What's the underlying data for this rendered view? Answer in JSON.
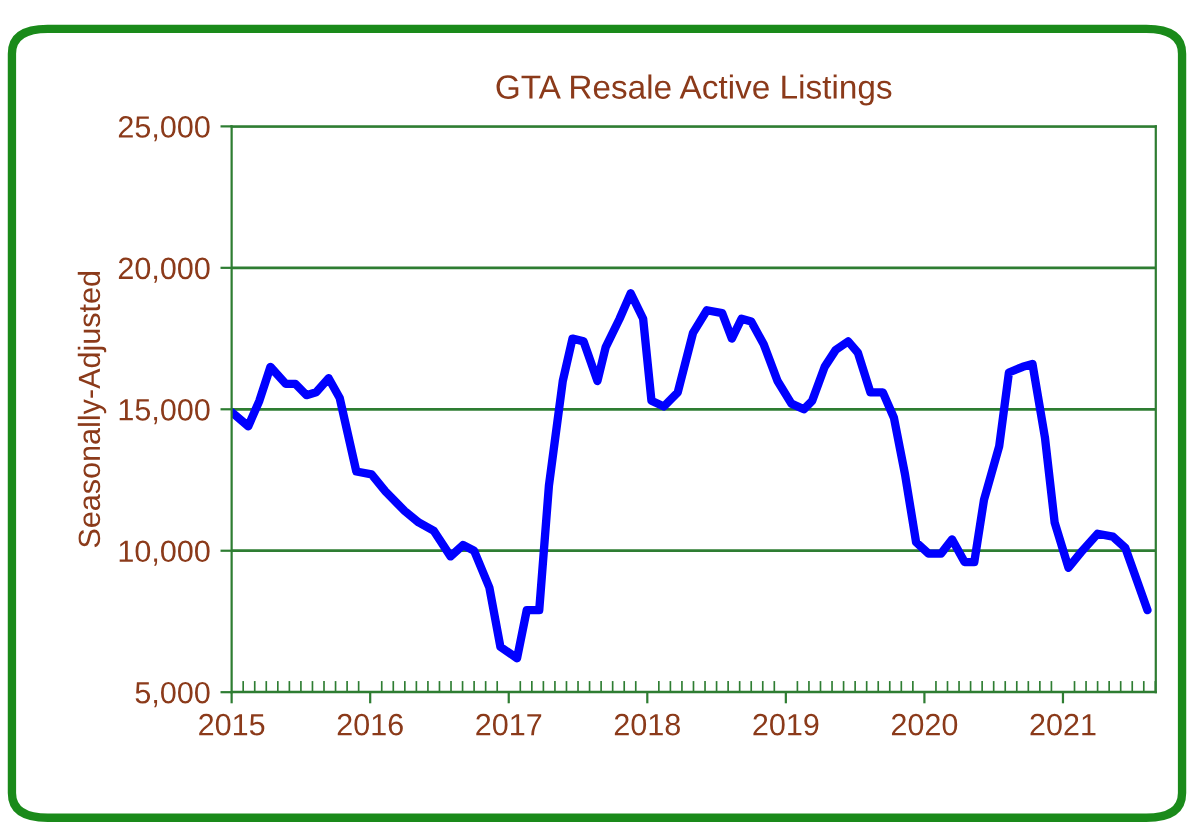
{
  "chart_data": {
    "type": "line",
    "title": "GTA Resale Active Listings",
    "ylabel": "Seasonally-Adjusted",
    "x": [
      2015.0,
      2015.12,
      2015.2,
      2015.28,
      2015.39,
      2015.46,
      2015.54,
      2015.61,
      2015.7,
      2015.78,
      2015.9,
      2016.01,
      2016.11,
      2016.25,
      2016.35,
      2016.46,
      2016.58,
      2016.67,
      2016.75,
      2016.86,
      2016.94,
      2017.06,
      2017.13,
      2017.22,
      2017.29,
      2017.39,
      2017.46,
      2017.54,
      2017.64,
      2017.7,
      2017.8,
      2017.88,
      2017.97,
      2018.03,
      2018.12,
      2018.22,
      2018.33,
      2018.43,
      2018.54,
      2018.61,
      2018.68,
      2018.75,
      2018.84,
      2018.94,
      2019.04,
      2019.13,
      2019.19,
      2019.28,
      2019.36,
      2019.45,
      2019.52,
      2019.61,
      2019.7,
      2019.78,
      2019.86,
      2019.94,
      2020.03,
      2020.12,
      2020.2,
      2020.29,
      2020.36,
      2020.43,
      2020.54,
      2020.61,
      2020.71,
      2020.78,
      2020.87,
      2020.94,
      2021.04,
      2021.14,
      2021.25,
      2021.36,
      2021.45,
      2021.61
    ],
    "series": [
      {
        "color": "#0000ff",
        "values": [
          14900,
          14400,
          15300,
          16500,
          15900,
          15900,
          15500,
          15600,
          16100,
          15400,
          12800,
          12700,
          12100,
          11400,
          11000,
          10700,
          9800,
          10200,
          10000,
          8700,
          6600,
          6200,
          7900,
          7900,
          12300,
          16000,
          17500,
          17400,
          16000,
          17200,
          18200,
          19100,
          18200,
          15300,
          15100,
          15600,
          17700,
          18500,
          18400,
          17500,
          18200,
          18100,
          17300,
          16000,
          15200,
          15000,
          15300,
          16500,
          17100,
          17400,
          17000,
          15600,
          15600,
          14700,
          12700,
          10300,
          9900,
          9900,
          10400,
          9600,
          9600,
          11800,
          13700,
          16300,
          16500,
          16600,
          14000,
          11000,
          9400,
          10000,
          10600,
          10500,
          10100,
          7900
        ]
      }
    ],
    "xlim": [
      2015,
      2021.67
    ],
    "xticks": [
      2015,
      2016,
      2017,
      2018,
      2019,
      2020,
      2021
    ],
    "ylim": [
      5000,
      25000
    ],
    "yticks": [
      {
        "value": 5000,
        "label": "5,000"
      },
      {
        "value": 10000,
        "label": "10,000"
      },
      {
        "value": 15000,
        "label": "15,000"
      },
      {
        "value": 20000,
        "label": "20,000"
      },
      {
        "value": 25000,
        "label": "25,000"
      }
    ],
    "grid": "y",
    "legend": false,
    "marker": "none",
    "line_style": "solid"
  }
}
